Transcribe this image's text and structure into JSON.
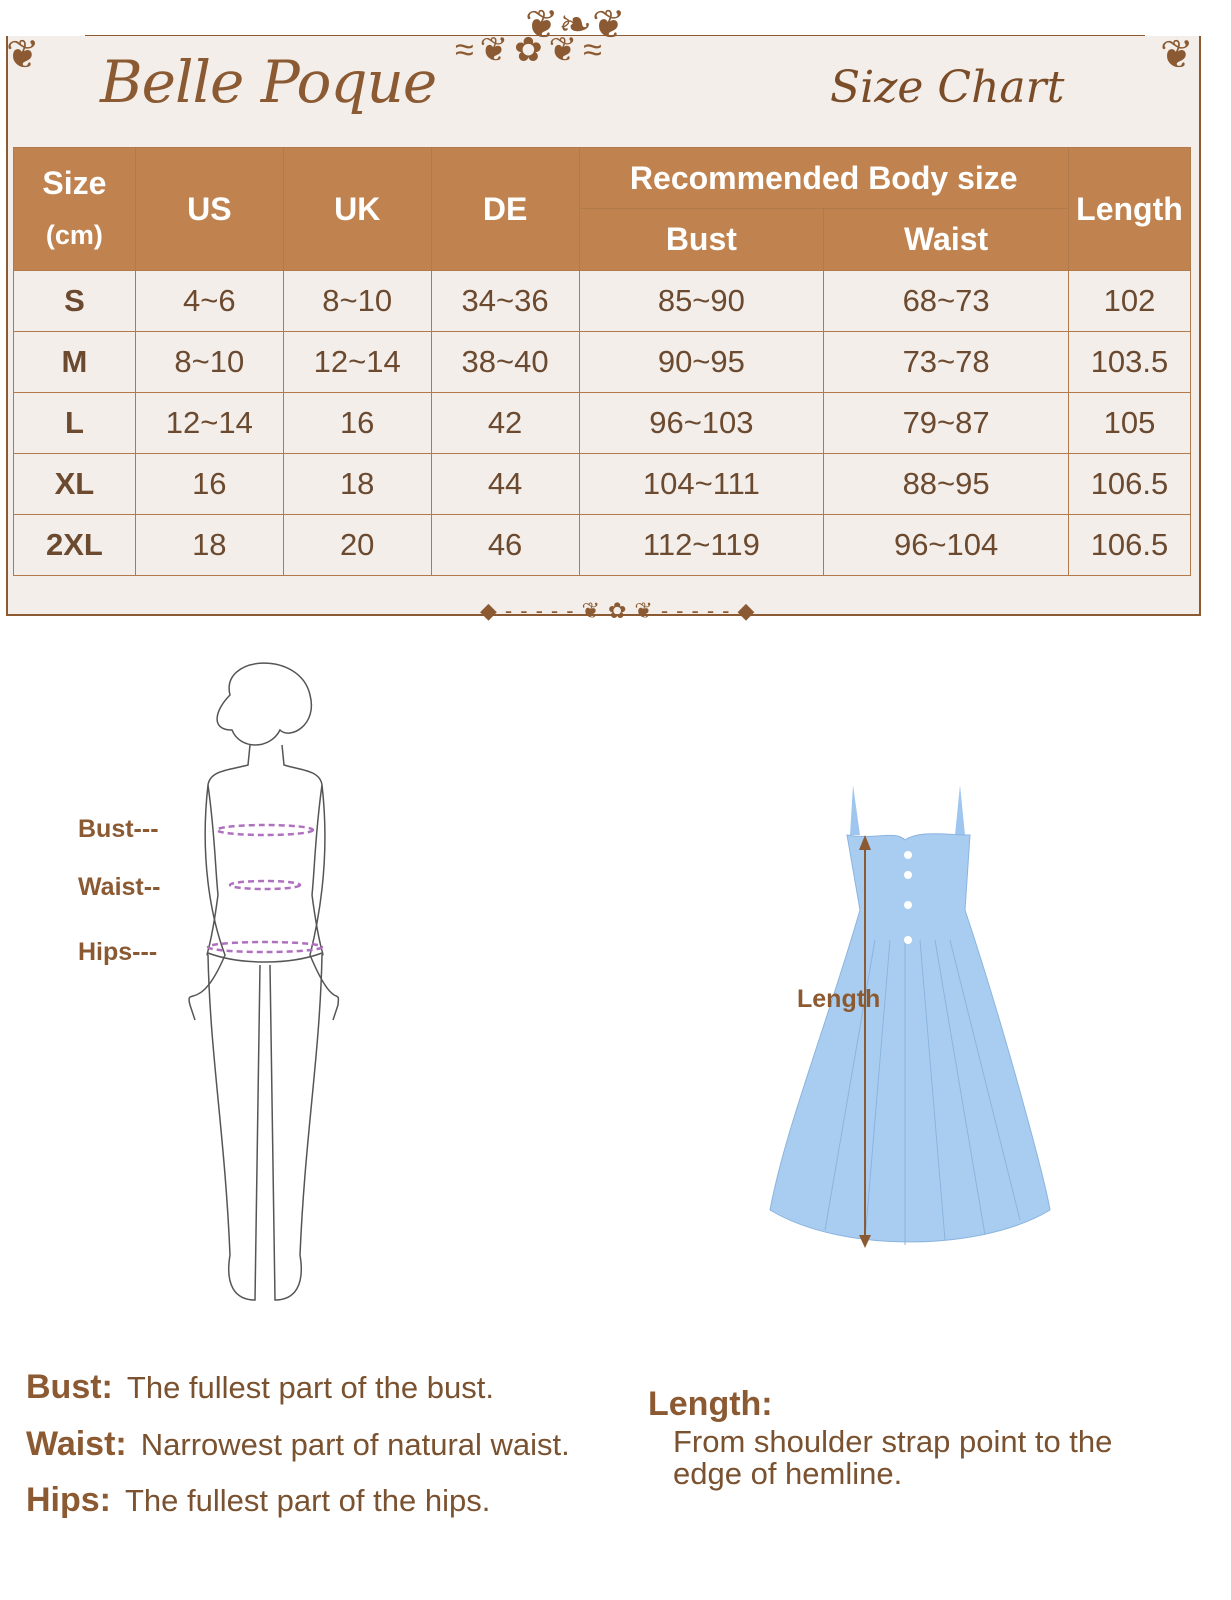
{
  "brand": "Belle Poque",
  "title": "Size Chart",
  "table": {
    "headers": {
      "size": "Size",
      "size_unit": "(cm)",
      "us": "US",
      "uk": "UK",
      "de": "DE",
      "body_group": "Recommended Body size",
      "bust": "Bust",
      "waist": "Waist",
      "length": "Length"
    },
    "rows": [
      [
        "S",
        "4~6",
        "8~10",
        "34~36",
        "85~90",
        "68~73",
        "102"
      ],
      [
        "M",
        "8~10",
        "12~14",
        "38~40",
        "90~95",
        "73~78",
        "103.5"
      ],
      [
        "L",
        "12~14",
        "16",
        "42",
        "96~103",
        "79~87",
        "105"
      ],
      [
        "XL",
        "16",
        "18",
        "44",
        "104~111",
        "88~95",
        "106.5"
      ],
      [
        "2XL",
        "18",
        "20",
        "46",
        "112~119",
        "96~104",
        "106.5"
      ]
    ]
  },
  "figure_labels": {
    "bust": "Bust---",
    "waist": "Waist--",
    "hips": "Hips---",
    "length": "Length"
  },
  "definitions": [
    {
      "term": "Bust:",
      "text": "The fullest part of the bust."
    },
    {
      "term": "Waist:",
      "text": "Narrowest part of natural waist."
    },
    {
      "term": "Hips:",
      "text": "The fullest part of the hips."
    },
    {
      "term": "Length:",
      "text": "From shoulder strap point to the edge of hemline."
    }
  ],
  "colors": {
    "header_bg": "#c0834f",
    "panel_bg": "#f3eeea",
    "brown": "#8b5a32",
    "dress": "#a9cdf0",
    "measure_line": "#b070c0"
  }
}
